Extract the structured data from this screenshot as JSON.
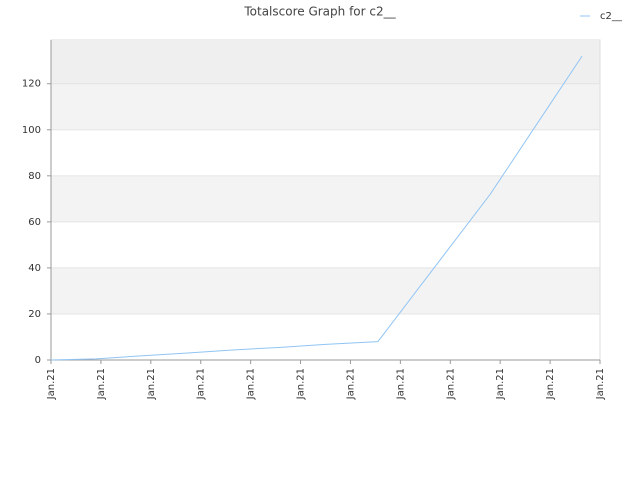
{
  "chart_data": {
    "type": "line",
    "title": "Totalscore Graph for c2__",
    "x": [
      0,
      0.9,
      1.8,
      2.7,
      3.6,
      4.6,
      5.5,
      6.55,
      8.8,
      10.64
    ],
    "series": [
      {
        "name": "c2__",
        "color": "#90c4f4",
        "values": [
          0,
          0.5,
          1.8,
          3,
          4.3,
          5.5,
          6.8,
          8,
          72,
          132
        ]
      }
    ],
    "xlim": [
      0,
      11
    ],
    "xticks": [
      {
        "value": 0,
        "label": "Jan.21"
      },
      {
        "value": 1,
        "label": "Jan.21"
      },
      {
        "value": 2,
        "label": "Jan.21"
      },
      {
        "value": 3,
        "label": "Jan.21"
      },
      {
        "value": 4,
        "label": "Jan.21"
      },
      {
        "value": 5,
        "label": "Jan.21"
      },
      {
        "value": 6,
        "label": "Jan.21"
      },
      {
        "value": 7,
        "label": "Jan.21"
      },
      {
        "value": 8,
        "label": "Jan.21"
      },
      {
        "value": 9,
        "label": "Jan.21"
      },
      {
        "value": 10,
        "label": "Jan.21"
      },
      {
        "value": 11,
        "label": "Jan.21"
      }
    ],
    "ylim": [
      0,
      139
    ],
    "yticks": [
      0,
      20,
      40,
      60,
      80,
      100,
      120
    ],
    "grid": true,
    "legend": "top-right"
  }
}
